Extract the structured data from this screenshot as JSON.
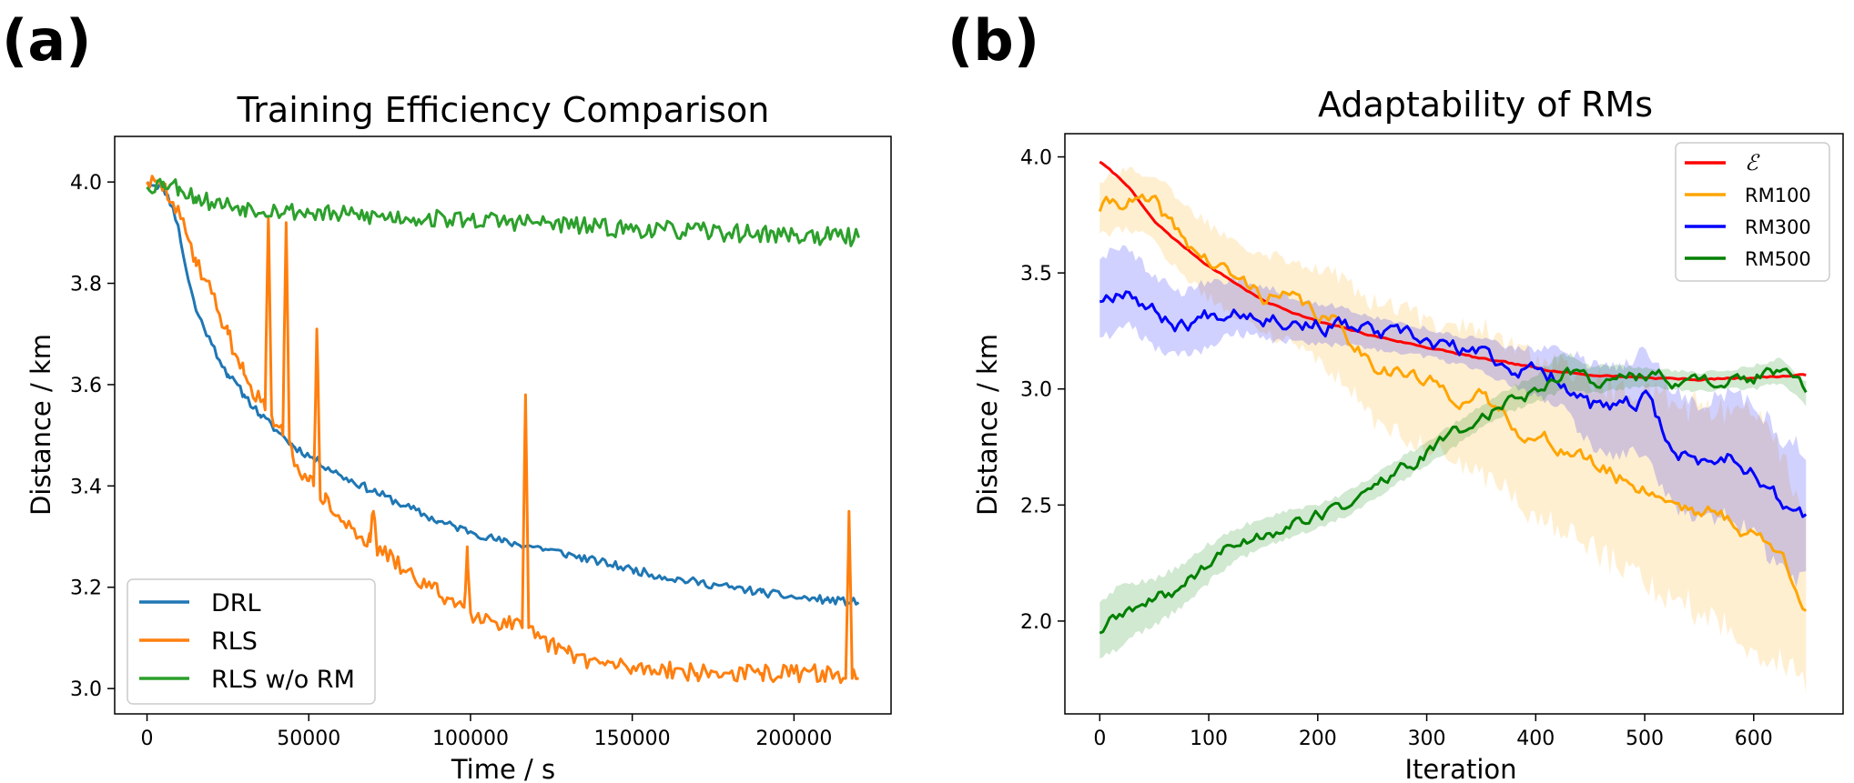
{
  "panels": {
    "a": "(a)",
    "b": "(b)"
  },
  "chart_data": [
    {
      "type": "line",
      "title": "Training Efficiency Comparison",
      "xlabel": "Time / s",
      "ylabel": "Distance / km",
      "xlim": [
        -10000,
        230000
      ],
      "ylim": [
        2.95,
        4.09
      ],
      "xticks": [
        0,
        50000,
        100000,
        150000,
        200000
      ],
      "xtick_labels": [
        "0",
        "50000",
        "100000",
        "150000",
        "200000"
      ],
      "yticks": [
        3.0,
        3.2,
        3.4,
        3.6,
        3.8,
        4.0
      ],
      "ytick_labels": [
        "3.0",
        "3.2",
        "3.4",
        "3.6",
        "3.8",
        "4.0"
      ],
      "grid": false,
      "legend_position": "lower-left",
      "series": [
        {
          "name": "DRL",
          "color": "#1f77b4",
          "x": [
            0,
            5000,
            8000,
            10000,
            12000,
            15000,
            20000,
            25000,
            30000,
            35000,
            40000,
            45000,
            50000,
            60000,
            70000,
            80000,
            90000,
            100000,
            110000,
            120000,
            130000,
            140000,
            150000,
            160000,
            170000,
            180000,
            190000,
            200000,
            210000,
            220000
          ],
          "y": [
            4.0,
            3.99,
            3.95,
            3.9,
            3.83,
            3.75,
            3.68,
            3.62,
            3.58,
            3.54,
            3.51,
            3.48,
            3.46,
            3.42,
            3.39,
            3.36,
            3.33,
            3.31,
            3.29,
            3.28,
            3.265,
            3.25,
            3.235,
            3.22,
            3.21,
            3.2,
            3.19,
            3.18,
            3.175,
            3.17
          ]
        },
        {
          "name": "RLS",
          "color": "#ff7f0e",
          "x": [
            0,
            5000,
            8000,
            12000,
            15000,
            20000,
            25000,
            30000,
            35000,
            36500,
            37500,
            38500,
            40000,
            42000,
            43000,
            44000,
            45000,
            50000,
            51500,
            52500,
            53500,
            55000,
            60000,
            69000,
            70000,
            71000,
            80000,
            90000,
            98000,
            99000,
            100000,
            110000,
            116000,
            117000,
            118000,
            120000,
            130000,
            140000,
            150000,
            160000,
            170000,
            180000,
            190000,
            200000,
            210000,
            216000,
            217000,
            218000,
            220000
          ],
          "y": [
            4.0,
            3.99,
            3.96,
            3.9,
            3.85,
            3.78,
            3.7,
            3.62,
            3.57,
            3.55,
            3.93,
            3.54,
            3.52,
            3.5,
            3.92,
            3.49,
            3.46,
            3.41,
            3.4,
            3.71,
            3.39,
            3.37,
            3.33,
            3.29,
            3.35,
            3.28,
            3.23,
            3.19,
            3.16,
            3.28,
            3.15,
            3.13,
            3.12,
            3.58,
            3.12,
            3.1,
            3.07,
            3.05,
            3.04,
            3.04,
            3.03,
            3.03,
            3.03,
            3.03,
            3.03,
            3.02,
            3.35,
            3.02,
            3.02
          ]
        },
        {
          "name": "RLS w/o RM",
          "color": "#2ca02c",
          "x": [
            0,
            5000,
            10000,
            15000,
            20000,
            30000,
            40000,
            50000,
            60000,
            80000,
            100000,
            120000,
            140000,
            160000,
            180000,
            200000,
            220000
          ],
          "y": [
            3.99,
            4.0,
            3.99,
            3.97,
            3.96,
            3.95,
            3.945,
            3.94,
            3.935,
            3.93,
            3.925,
            3.92,
            3.91,
            3.905,
            3.9,
            3.895,
            3.89
          ]
        }
      ]
    },
    {
      "type": "line",
      "title": "Adaptability of RMs",
      "xlabel": "Iteration",
      "ylabel": "Distance / km",
      "xlim": [
        -32,
        682
      ],
      "ylim": [
        1.6,
        4.1
      ],
      "xticks": [
        0,
        100,
        200,
        300,
        400,
        500,
        600
      ],
      "xtick_labels": [
        "0",
        "100",
        "200",
        "300",
        "400",
        "500",
        "600"
      ],
      "yticks": [
        2.0,
        2.5,
        3.0,
        3.5,
        4.0
      ],
      "ytick_labels": [
        "2.0",
        "2.5",
        "3.0",
        "3.5",
        "4.0"
      ],
      "grid": false,
      "legend_position": "top-right",
      "series": [
        {
          "name": "ℰ",
          "color": "#ff0000",
          "x": [
            0,
            25,
            50,
            75,
            100,
            150,
            200,
            250,
            300,
            350,
            400,
            450,
            500,
            550,
            600,
            650
          ],
          "y": [
            3.98,
            3.88,
            3.72,
            3.62,
            3.53,
            3.38,
            3.29,
            3.23,
            3.18,
            3.13,
            3.09,
            3.06,
            3.05,
            3.04,
            3.05,
            3.06
          ],
          "band": null
        },
        {
          "name": "RM100",
          "color": "#ffa500",
          "x": [
            0,
            25,
            50,
            75,
            100,
            125,
            150,
            175,
            200,
            225,
            250,
            275,
            300,
            325,
            350,
            375,
            400,
            425,
            450,
            475,
            500,
            525,
            550,
            575,
            600,
            625,
            650
          ],
          "y": [
            3.78,
            3.82,
            3.78,
            3.65,
            3.55,
            3.47,
            3.41,
            3.38,
            3.32,
            3.25,
            3.12,
            3.08,
            3.02,
            2.98,
            2.95,
            2.88,
            2.78,
            2.75,
            2.68,
            2.62,
            2.58,
            2.52,
            2.48,
            2.44,
            2.38,
            2.28,
            2.07
          ],
          "band": [
            0.12,
            0.13,
            0.14,
            0.15,
            0.16,
            0.17,
            0.18,
            0.18,
            0.2,
            0.22,
            0.25,
            0.27,
            0.28,
            0.3,
            0.32,
            0.33,
            0.34,
            0.35,
            0.36,
            0.38,
            0.4,
            0.42,
            0.44,
            0.46,
            0.5,
            0.45,
            0.35
          ]
        },
        {
          "name": "RM300",
          "color": "#0000ff",
          "x": [
            0,
            25,
            50,
            75,
            100,
            125,
            150,
            175,
            200,
            225,
            250,
            275,
            300,
            325,
            350,
            375,
            400,
            425,
            450,
            475,
            500,
            525,
            550,
            575,
            600,
            625,
            650
          ],
          "y": [
            3.39,
            3.45,
            3.33,
            3.28,
            3.32,
            3.36,
            3.33,
            3.3,
            3.28,
            3.27,
            3.24,
            3.22,
            3.2,
            3.17,
            3.15,
            3.1,
            3.07,
            3.05,
            2.93,
            2.9,
            2.95,
            2.75,
            2.68,
            2.72,
            2.66,
            2.5,
            2.45
          ],
          "band": [
            0.18,
            0.17,
            0.15,
            0.14,
            0.14,
            0.12,
            0.11,
            0.1,
            0.09,
            0.08,
            0.07,
            0.07,
            0.06,
            0.06,
            0.07,
            0.08,
            0.1,
            0.13,
            0.17,
            0.2,
            0.22,
            0.24,
            0.26,
            0.26,
            0.28,
            0.3,
            0.28
          ]
        },
        {
          "name": "RM500",
          "color": "#008000",
          "x": [
            0,
            25,
            50,
            75,
            100,
            125,
            150,
            175,
            200,
            225,
            250,
            275,
            300,
            325,
            350,
            375,
            400,
            425,
            450,
            475,
            500,
            525,
            550,
            575,
            600,
            625,
            650
          ],
          "y": [
            1.96,
            2.04,
            2.08,
            2.15,
            2.25,
            2.33,
            2.38,
            2.42,
            2.45,
            2.5,
            2.57,
            2.65,
            2.72,
            2.8,
            2.88,
            2.95,
            3.0,
            3.08,
            3.04,
            3.05,
            3.05,
            3.04,
            3.03,
            3.04,
            3.05,
            3.08,
            2.97
          ],
          "band": [
            0.13,
            0.12,
            0.1,
            0.09,
            0.08,
            0.07,
            0.06,
            0.06,
            0.05,
            0.05,
            0.05,
            0.05,
            0.05,
            0.05,
            0.05,
            0.05,
            0.06,
            0.08,
            0.06,
            0.05,
            0.04,
            0.04,
            0.04,
            0.04,
            0.05,
            0.05,
            0.05
          ]
        }
      ]
    }
  ]
}
